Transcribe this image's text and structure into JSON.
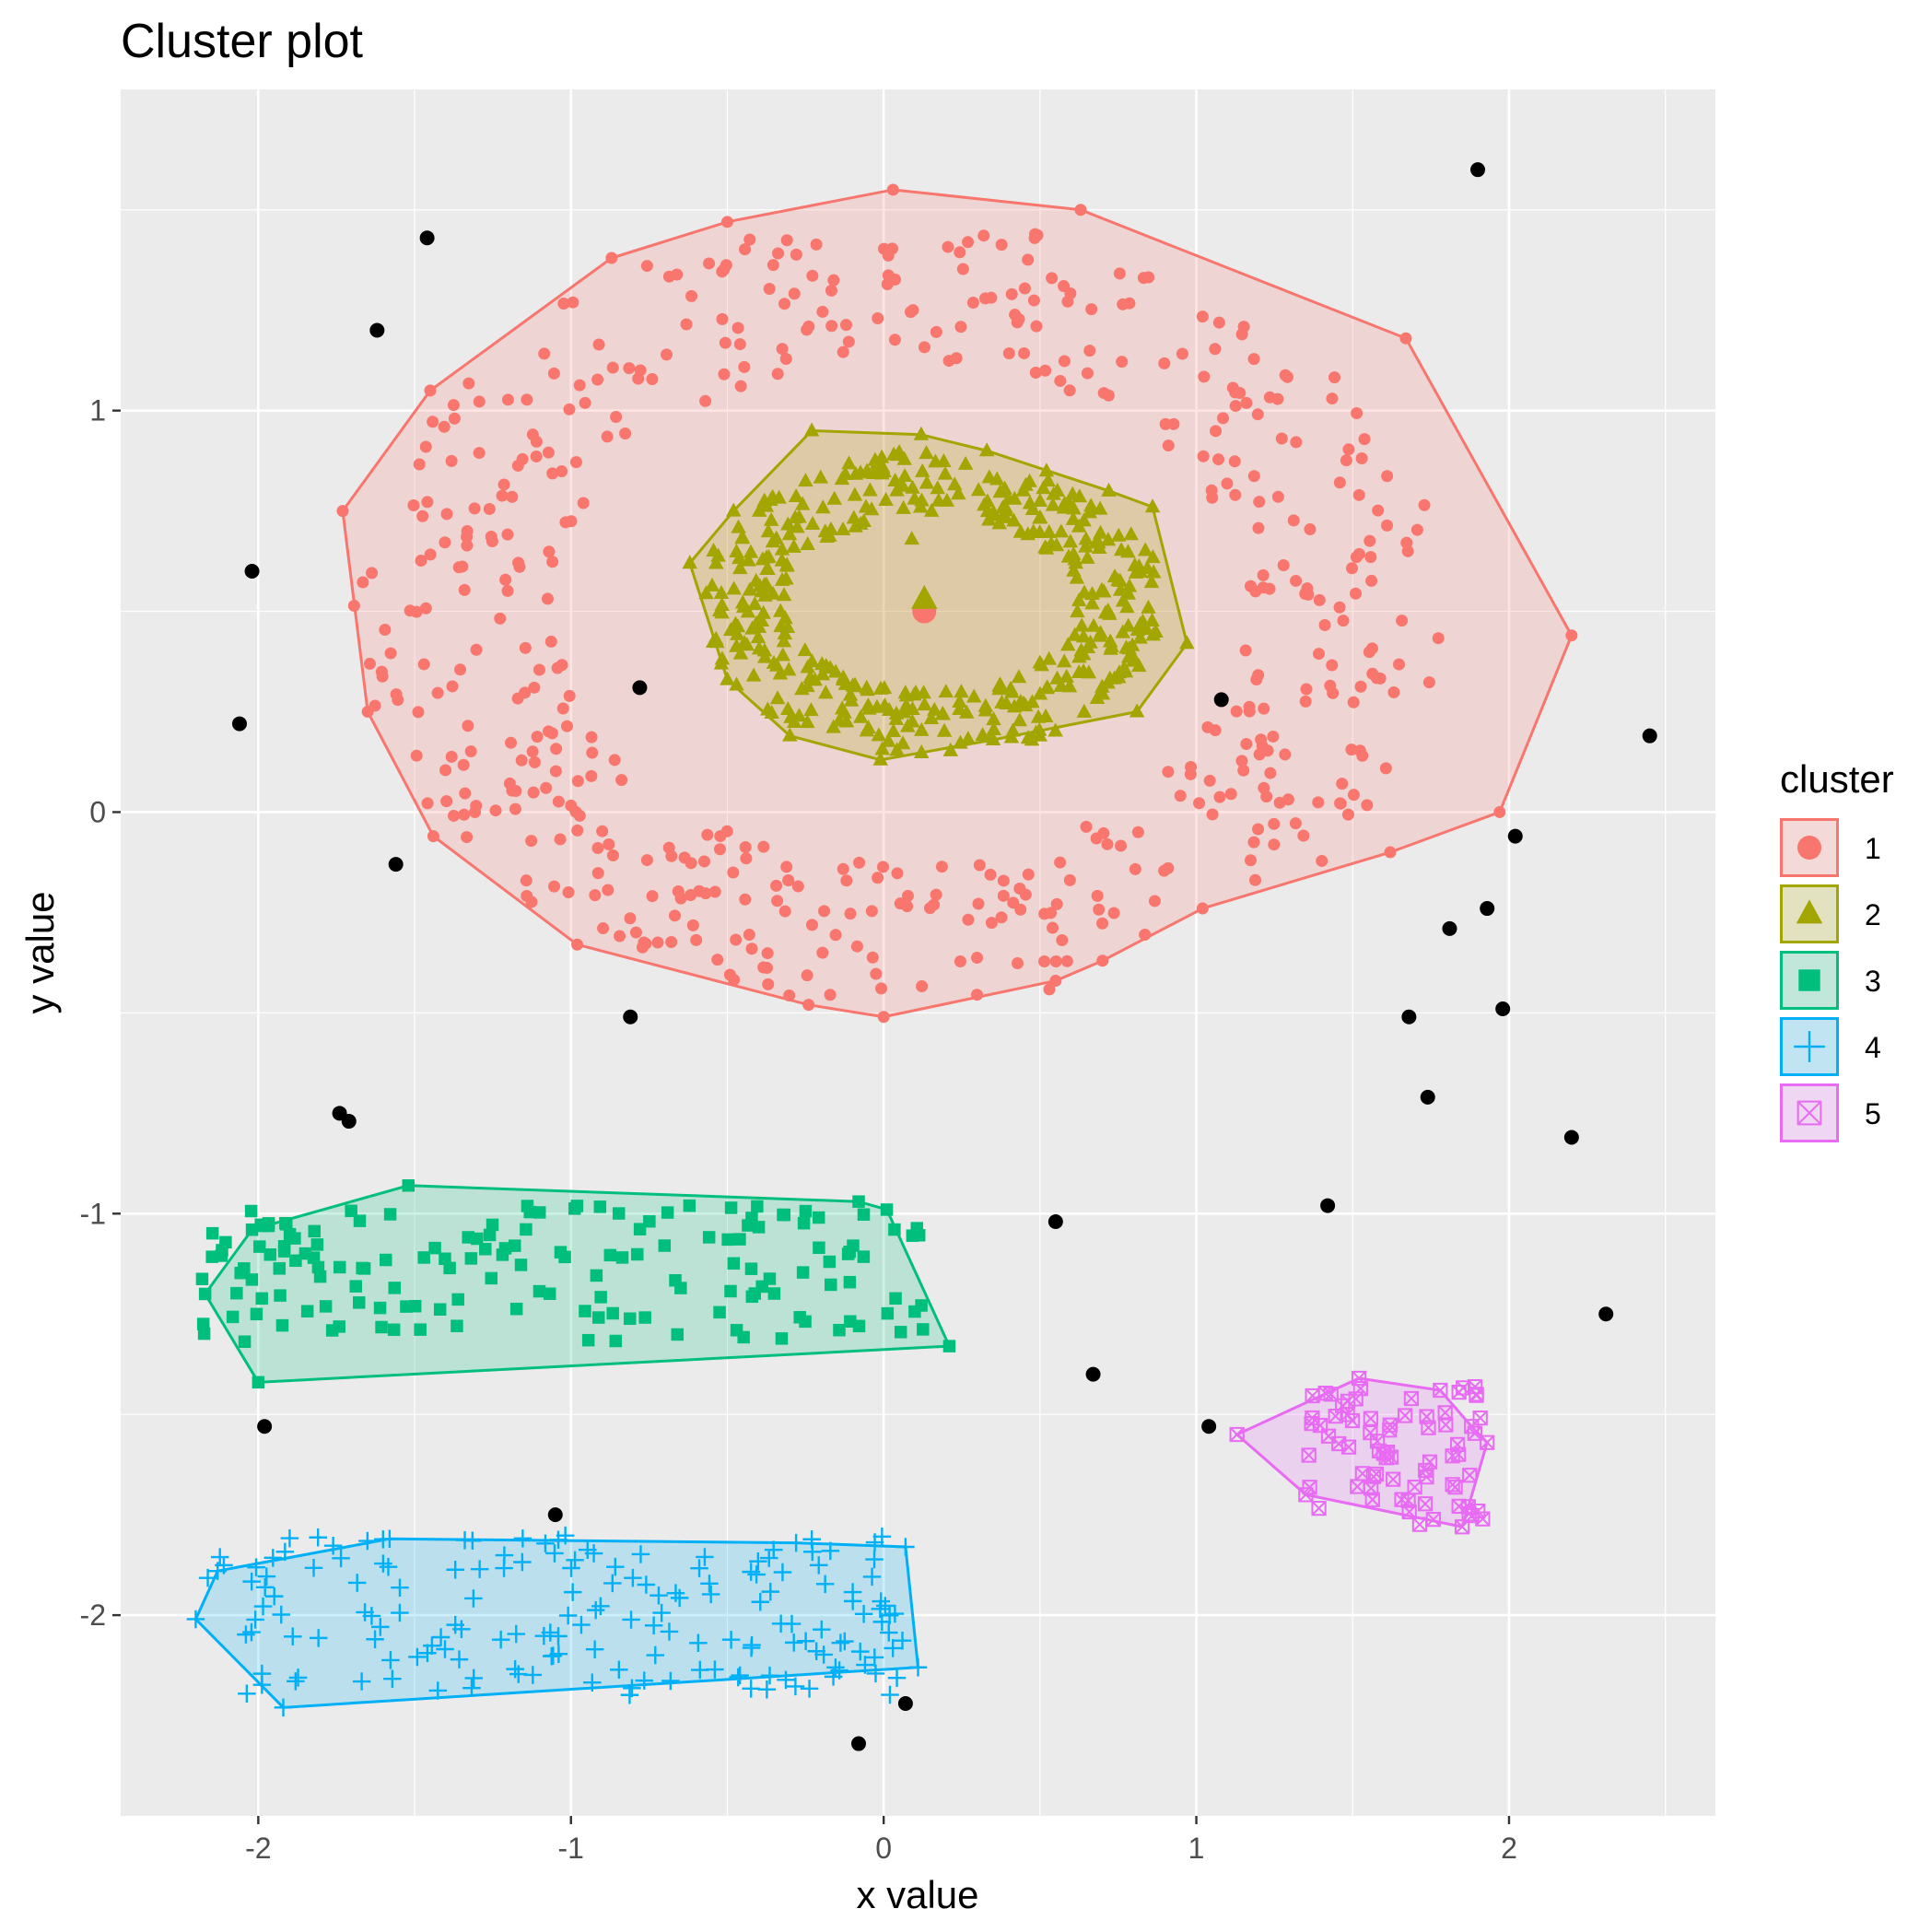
{
  "chart_data": {
    "type": "scatter",
    "title": "Cluster plot",
    "xlabel": "x value",
    "ylabel": "y value",
    "xlim": [
      -2.44,
      2.66
    ],
    "ylim": [
      -2.5,
      1.8
    ],
    "x_ticks": [
      -2,
      -1,
      0,
      1,
      2
    ],
    "x_tick_labels": [
      "-2",
      "-1",
      "0",
      "1",
      "2"
    ],
    "y_ticks": [
      -2,
      -1,
      0,
      1
    ],
    "y_tick_labels": [
      "-2",
      "-1",
      "0",
      "1"
    ],
    "grid": true,
    "panel_background": "#ebebeb",
    "legend": {
      "title": "cluster",
      "position": "right",
      "entries": [
        {
          "label": "1",
          "shape": "circle",
          "color": "#F8766D"
        },
        {
          "label": "2",
          "shape": "triangle",
          "color": "#A3A500"
        },
        {
          "label": "3",
          "shape": "square",
          "color": "#00BF7D"
        },
        {
          "label": "4",
          "shape": "plus",
          "color": "#00B0F6"
        },
        {
          "label": "5",
          "shape": "boxed-x",
          "color": "#E76BF3"
        }
      ]
    },
    "clusters": [
      {
        "name": "1",
        "color": "#F8766D",
        "shape": "circle",
        "center": [
          0.13,
          0.5
        ],
        "ring": {
          "cx": 0.05,
          "cy": 0.5,
          "rx_inner": 1.1,
          "rx_outer": 1.75,
          "ry_inner": 0.63,
          "ry_outer": 0.98,
          "n": 520
        },
        "hull": [
          [
            0.03,
            1.55
          ],
          [
            0.63,
            1.5
          ],
          [
            1.67,
            1.18
          ],
          [
            2.2,
            0.44
          ],
          [
            1.97,
            0.0
          ],
          [
            1.62,
            -0.1
          ],
          [
            1.02,
            -0.24
          ],
          [
            0.7,
            -0.37
          ],
          [
            0.55,
            -0.42
          ],
          [
            0.0,
            -0.51
          ],
          [
            -0.24,
            -0.48
          ],
          [
            -0.98,
            -0.33
          ],
          [
            -1.44,
            -0.06
          ],
          [
            -1.65,
            0.25
          ],
          [
            -1.73,
            0.75
          ],
          [
            -1.45,
            1.05
          ],
          [
            -0.87,
            1.38
          ],
          [
            -0.5,
            1.47
          ]
        ]
      },
      {
        "name": "2",
        "color": "#A3A500",
        "shape": "triangle",
        "center": [
          0.13,
          0.53
        ],
        "ring": {
          "cx": 0.15,
          "cy": 0.52,
          "rx_inner": 0.47,
          "rx_outer": 0.75,
          "ry_inner": 0.22,
          "ry_outer": 0.38,
          "n": 430
        },
        "extra_points": [
          [
            0.09,
            0.68
          ]
        ],
        "hull": [
          [
            -0.23,
            0.95
          ],
          [
            0.12,
            0.94
          ],
          [
            0.33,
            0.9
          ],
          [
            0.72,
            0.8
          ],
          [
            0.86,
            0.76
          ],
          [
            0.97,
            0.42
          ],
          [
            0.81,
            0.25
          ],
          [
            0.35,
            0.18
          ],
          [
            -0.01,
            0.13
          ],
          [
            -0.3,
            0.19
          ],
          [
            -0.5,
            0.33
          ],
          [
            -0.62,
            0.62
          ],
          [
            -0.48,
            0.75
          ]
        ]
      },
      {
        "name": "3",
        "color": "#00BF7D",
        "shape": "square",
        "box": {
          "x": [
            -2.18,
            0.15
          ],
          "y": [
            -1.32,
            -0.98
          ],
          "n": 160
        },
        "hull": [
          [
            -1.52,
            -0.93
          ],
          [
            -0.08,
            -0.97
          ],
          [
            0.01,
            -0.99
          ],
          [
            0.21,
            -1.33
          ],
          [
            -2.0,
            -1.42
          ],
          [
            -2.17,
            -1.2
          ],
          [
            -2.02,
            -1.04
          ]
        ]
      },
      {
        "name": "4",
        "color": "#00B0F6",
        "shape": "plus",
        "box": {
          "x": [
            -2.18,
            0.07
          ],
          "y": [
            -2.2,
            -1.8
          ],
          "n": 170
        },
        "hull": [
          [
            -1.58,
            -1.81
          ],
          [
            -0.28,
            -1.82
          ],
          [
            0.07,
            -1.83
          ],
          [
            0.11,
            -2.13
          ],
          [
            -1.92,
            -2.23
          ],
          [
            -2.2,
            -2.01
          ],
          [
            -2.13,
            -1.89
          ]
        ]
      },
      {
        "name": "5",
        "color": "#E76BF3",
        "shape": "boxed-x",
        "box": {
          "x": [
            1.35,
            1.92
          ],
          "y": [
            -1.78,
            -1.42
          ],
          "n": 70
        },
        "hull": [
          [
            1.52,
            -1.41
          ],
          [
            1.78,
            -1.44
          ],
          [
            1.88,
            -1.53
          ],
          [
            1.93,
            -1.57
          ],
          [
            1.87,
            -1.73
          ],
          [
            1.85,
            -1.78
          ],
          [
            1.35,
            -1.7
          ],
          [
            1.13,
            -1.55
          ]
        ]
      }
    ],
    "outliers": {
      "color": "#000000",
      "points": [
        [
          1.9,
          1.6
        ],
        [
          -1.46,
          1.43
        ],
        [
          -1.62,
          1.2
        ],
        [
          -2.02,
          0.6
        ],
        [
          -2.06,
          0.22
        ],
        [
          -0.78,
          0.31
        ],
        [
          1.08,
          0.28
        ],
        [
          2.45,
          0.19
        ],
        [
          -1.56,
          -0.13
        ],
        [
          2.02,
          -0.06
        ],
        [
          1.93,
          -0.24
        ],
        [
          1.81,
          -0.29
        ],
        [
          -0.81,
          -0.51
        ],
        [
          1.68,
          -0.51
        ],
        [
          1.98,
          -0.49
        ],
        [
          -1.74,
          -0.75
        ],
        [
          -1.71,
          -0.77
        ],
        [
          1.74,
          -0.71
        ],
        [
          2.2,
          -0.81
        ],
        [
          1.42,
          -0.98
        ],
        [
          0.55,
          -1.02
        ],
        [
          2.31,
          -1.25
        ],
        [
          0.67,
          -1.4
        ],
        [
          -1.98,
          -1.53
        ],
        [
          1.04,
          -1.53
        ],
        [
          -1.05,
          -1.75
        ],
        [
          0.07,
          -2.22
        ],
        [
          -0.08,
          -2.32
        ]
      ]
    }
  }
}
